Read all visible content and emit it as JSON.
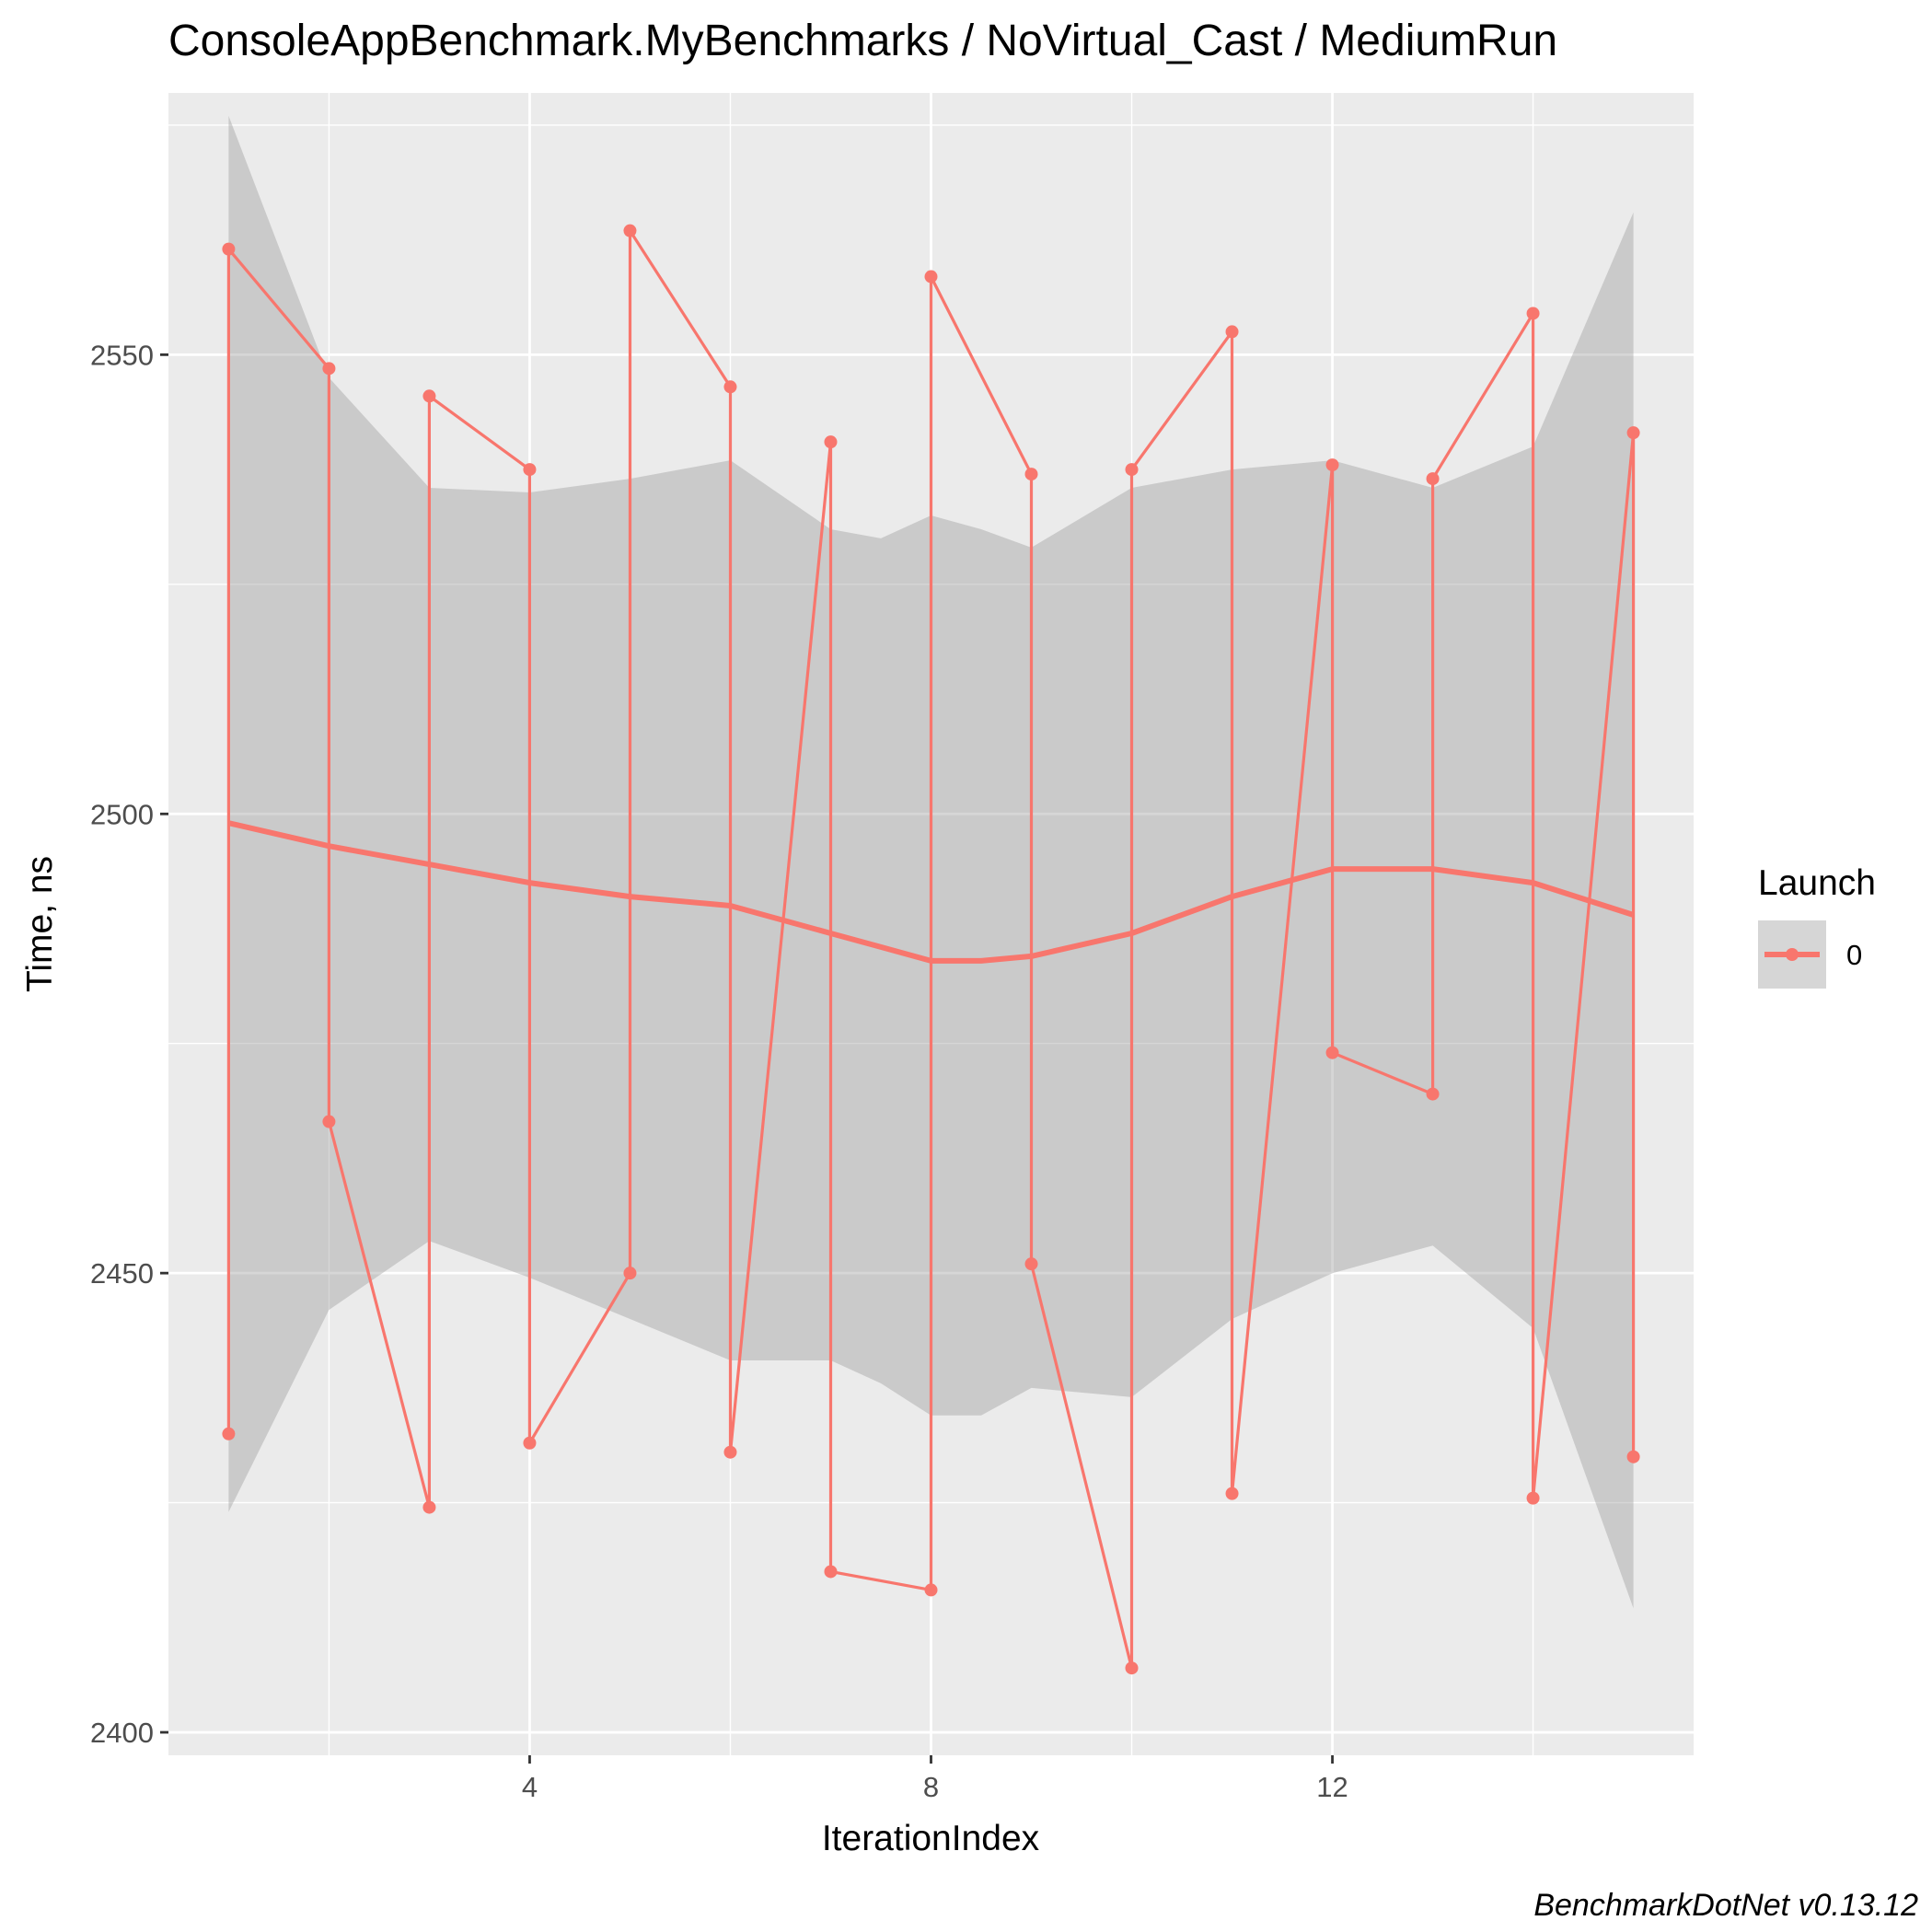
{
  "chart_data": {
    "type": "line",
    "title": "ConsoleAppBenchmark.MyBenchmarks / NoVirtual_Cast / MediumRun",
    "xlabel": "IterationIndex",
    "ylabel": "Time, ns",
    "caption": "BenchmarkDotNet v0.13.12",
    "xlim": [
      0.4,
      15.6
    ],
    "ylim": [
      2397.5,
      2578.5
    ],
    "x_ticks": [
      4,
      8,
      12
    ],
    "x_tick_labels": [
      "4",
      "8",
      "12"
    ],
    "x_minor_ticks": [
      2,
      6,
      10,
      14
    ],
    "y_ticks": [
      2400,
      2450,
      2500,
      2550
    ],
    "y_tick_labels": [
      "2400",
      "2450",
      "2500",
      "2550"
    ],
    "y_minor_ticks": [
      2425,
      2475,
      2525,
      2575
    ],
    "grid": true,
    "legend": {
      "title": "Launch",
      "position": "right",
      "entries": [
        "0"
      ]
    },
    "series_color": "#F8766D",
    "band_color": "#999999",
    "panel_background": "#EBEBEB",
    "series": [
      {
        "name": "0",
        "x": [
          1,
          1,
          2,
          2,
          3,
          3,
          4,
          4,
          5,
          5,
          6,
          6,
          7,
          7,
          8,
          8,
          9,
          9,
          10,
          10,
          11,
          11,
          12,
          12,
          13,
          13,
          14,
          14,
          15,
          15
        ],
        "values": [
          2432.5,
          2561.5,
          2548.5,
          2466.5,
          2424.5,
          2545.5,
          2537.5,
          2431.5,
          2450.0,
          2563.5,
          2546.5,
          2430.5,
          2540.5,
          2417.5,
          2415.5,
          2558.5,
          2537.0,
          2451.0,
          2407.0,
          2537.5,
          2552.5,
          2426.0,
          2538.0,
          2474.0,
          2469.5,
          2536.5,
          2554.5,
          2425.5,
          2541.5,
          2430.0
        ]
      }
    ],
    "smooth": {
      "x": [
        1,
        2,
        3,
        4,
        5,
        6,
        7,
        7.5,
        8,
        8.5,
        9,
        10,
        11,
        12,
        13,
        14,
        15
      ],
      "y": [
        2499.0,
        2496.5,
        2494.5,
        2492.5,
        2491.0,
        2490.0,
        2487.0,
        2485.5,
        2484.0,
        2484.0,
        2484.5,
        2487.0,
        2491.0,
        2494.0,
        2494.0,
        2492.5,
        2489.0
      ],
      "upper": [
        2576.0,
        2547.5,
        2535.5,
        2535.0,
        2536.5,
        2538.5,
        2531.0,
        2530.0,
        2532.5,
        2531.0,
        2529.0,
        2535.5,
        2537.5,
        2538.5,
        2535.5,
        2540.0,
        2565.5
      ],
      "lower": [
        2424.0,
        2446.0,
        2453.5,
        2449.5,
        2445.0,
        2440.5,
        2440.5,
        2438.0,
        2434.5,
        2434.5,
        2437.5,
        2436.5,
        2445.0,
        2450.0,
        2453.0,
        2444.0,
        2413.5
      ]
    }
  }
}
